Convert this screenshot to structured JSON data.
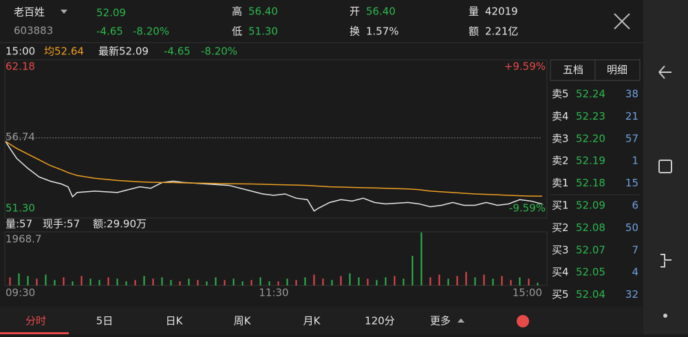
{
  "header": {
    "name": "老百姓",
    "code": "603883",
    "price": "52.09",
    "change": "-4.65",
    "change_pct": "-8.20%",
    "high_label": "高",
    "high": "56.40",
    "low_label": "低",
    "low": "51.30",
    "open_label": "开",
    "open": "56.40",
    "turnover_label": "换",
    "turnover": "1.57%",
    "volume_label": "量",
    "volume": "42019",
    "amount_label": "额",
    "amount": "2.21亿"
  },
  "info_bar": {
    "time": "15:00",
    "avg": "均52.64",
    "latest": "最新52.09",
    "change": "-4.65",
    "change_pct": "-8.20%"
  },
  "chart_data": [
    {
      "type": "line",
      "x": [
        0,
        2,
        5,
        10,
        15,
        20,
        25,
        28,
        30,
        32,
        40,
        50,
        55,
        60,
        65,
        70,
        75,
        80,
        90,
        100,
        110,
        115,
        120,
        125,
        130,
        135,
        138,
        140,
        145,
        150,
        155,
        160,
        165,
        170,
        180,
        185,
        190,
        195,
        200,
        205,
        210,
        215,
        220,
        225,
        230,
        235,
        240
      ],
      "series": [
        {
          "color": "#e8e8e8",
          "values": [
            56.5,
            56.0,
            55.3,
            54.6,
            54.0,
            53.7,
            53.5,
            53.3,
            52.6,
            52.9,
            53.0,
            52.9,
            53.1,
            53.3,
            53.2,
            53.6,
            53.7,
            53.6,
            53.5,
            53.4,
            53.0,
            52.8,
            52.7,
            52.8,
            52.5,
            52.4,
            51.6,
            51.8,
            52.2,
            52.4,
            52.3,
            52.5,
            52.2,
            52.1,
            52.2,
            52.1,
            51.9,
            52.0,
            52.2,
            52.0,
            52.0,
            52.2,
            52.0,
            52.1,
            52.4,
            52.3,
            52.09
          ]
        },
        {
          "color": "#f0a020",
          "values": [
            56.5,
            56.3,
            56.0,
            55.6,
            55.2,
            54.8,
            54.5,
            54.3,
            54.2,
            54.1,
            53.9,
            53.75,
            53.7,
            53.65,
            53.62,
            53.6,
            53.6,
            53.58,
            53.55,
            53.52,
            53.5,
            53.48,
            53.46,
            53.44,
            53.42,
            53.4,
            53.37,
            53.35,
            53.3,
            53.28,
            53.26,
            53.24,
            53.22,
            53.2,
            53.15,
            53.1,
            53.0,
            52.95,
            52.9,
            52.85,
            52.8,
            52.77,
            52.74,
            52.7,
            52.67,
            52.65,
            52.64
          ]
        }
      ],
      "xlim": [
        0,
        240
      ],
      "xticks": [
        {
          "value": 0,
          "label": "09:30"
        },
        {
          "value": 120,
          "label": "11:30"
        },
        {
          "value": 240,
          "label": "15:00"
        }
      ],
      "ylim": [
        51.3,
        62.18
      ],
      "yticks": [
        62.18,
        56.74,
        {
          "value": 51.3,
          "label": "51.30"
        }
      ],
      "y2lim": [
        -9.59,
        9.59
      ],
      "y2ticks": [
        {
          "value": 9.59,
          "label": "+9.59%"
        },
        {
          "value": -9.59,
          "label": "-9.59%"
        }
      ]
    },
    {
      "type": "bar",
      "annotations": [
        "量:57",
        "现手:57",
        "额:29.90万"
      ],
      "x": [
        2,
        6,
        10,
        14,
        18,
        22,
        26,
        30,
        34,
        38,
        42,
        46,
        50,
        54,
        58,
        62,
        66,
        70,
        74,
        78,
        82,
        86,
        90,
        94,
        98,
        102,
        106,
        110,
        114,
        118,
        122,
        126,
        130,
        134,
        138,
        142,
        146,
        150,
        154,
        158,
        162,
        166,
        170,
        174,
        178,
        182,
        186,
        190,
        194,
        198,
        202,
        206,
        210,
        214,
        218,
        222,
        226,
        230,
        234,
        238
      ],
      "values": [
        300,
        450,
        350,
        250,
        400,
        200,
        300,
        150,
        350,
        250,
        200,
        300,
        250,
        150,
        200,
        350,
        250,
        300,
        200,
        150,
        250,
        200,
        150,
        300,
        200,
        250,
        150,
        200,
        300,
        150,
        150,
        250,
        200,
        300,
        400,
        250,
        200,
        350,
        450,
        300,
        250,
        200,
        300,
        350,
        250,
        1100,
        1968.7,
        300,
        400,
        250,
        350,
        500,
        300,
        400,
        250,
        350,
        200,
        300,
        250,
        100
      ],
      "colors": [
        "#e84a4a",
        "#2db84d",
        "#2db84d",
        "#e84a4a",
        "#2db84d",
        "#2db84d",
        "#e84a4a",
        "#2db84d",
        "#e84a4a",
        "#2db84d",
        "#2db84d",
        "#e84a4a",
        "#2db84d",
        "#2db84d",
        "#e84a4a",
        "#2db84d",
        "#e84a4a",
        "#2db84d",
        "#2db84d",
        "#e84a4a",
        "#2db84d",
        "#e84a4a",
        "#2db84d",
        "#2db84d",
        "#e84a4a",
        "#2db84d",
        "#2db84d",
        "#e84a4a",
        "#2db84d",
        "#2db84d",
        "#e84a4a",
        "#2db84d",
        "#e84a4a",
        "#2db84d",
        "#e84a4a",
        "#e84a4a",
        "#2db84d",
        "#e84a4a",
        "#2db84d",
        "#2db84d",
        "#e84a4a",
        "#2db84d",
        "#2db84d",
        "#e84a4a",
        "#2db84d",
        "#2db84d",
        "#2db84d",
        "#e84a4a",
        "#e84a4a",
        "#2db84d",
        "#e84a4a",
        "#e84a4a",
        "#2db84d",
        "#e84a4a",
        "#2db84d",
        "#e84a4a",
        "#e84a4a",
        "#2db84d",
        "#e84a4a",
        "#2db84d"
      ],
      "xlim": [
        0,
        240
      ],
      "ylim": [
        0,
        1968.7
      ],
      "yticks": [
        1968.7
      ]
    }
  ],
  "order_book": {
    "tabs": [
      "五档",
      "明细"
    ],
    "rows": [
      {
        "label": "卖5",
        "price": "52.24",
        "qty": "38"
      },
      {
        "label": "卖4",
        "price": "52.23",
        "qty": "21"
      },
      {
        "label": "卖3",
        "price": "52.20",
        "qty": "57"
      },
      {
        "label": "卖2",
        "price": "52.19",
        "qty": "1"
      },
      {
        "label": "卖1",
        "price": "52.18",
        "qty": "15"
      },
      {
        "label": "买1",
        "price": "52.09",
        "qty": "6"
      },
      {
        "label": "买2",
        "price": "52.08",
        "qty": "50"
      },
      {
        "label": "买3",
        "price": "52.07",
        "qty": "7"
      },
      {
        "label": "买4",
        "price": "52.05",
        "qty": "4"
      },
      {
        "label": "买5",
        "price": "52.04",
        "qty": "32"
      }
    ]
  },
  "tabs": [
    "分时",
    "5日",
    "日K",
    "周K",
    "月K",
    "120分",
    "更多"
  ]
}
